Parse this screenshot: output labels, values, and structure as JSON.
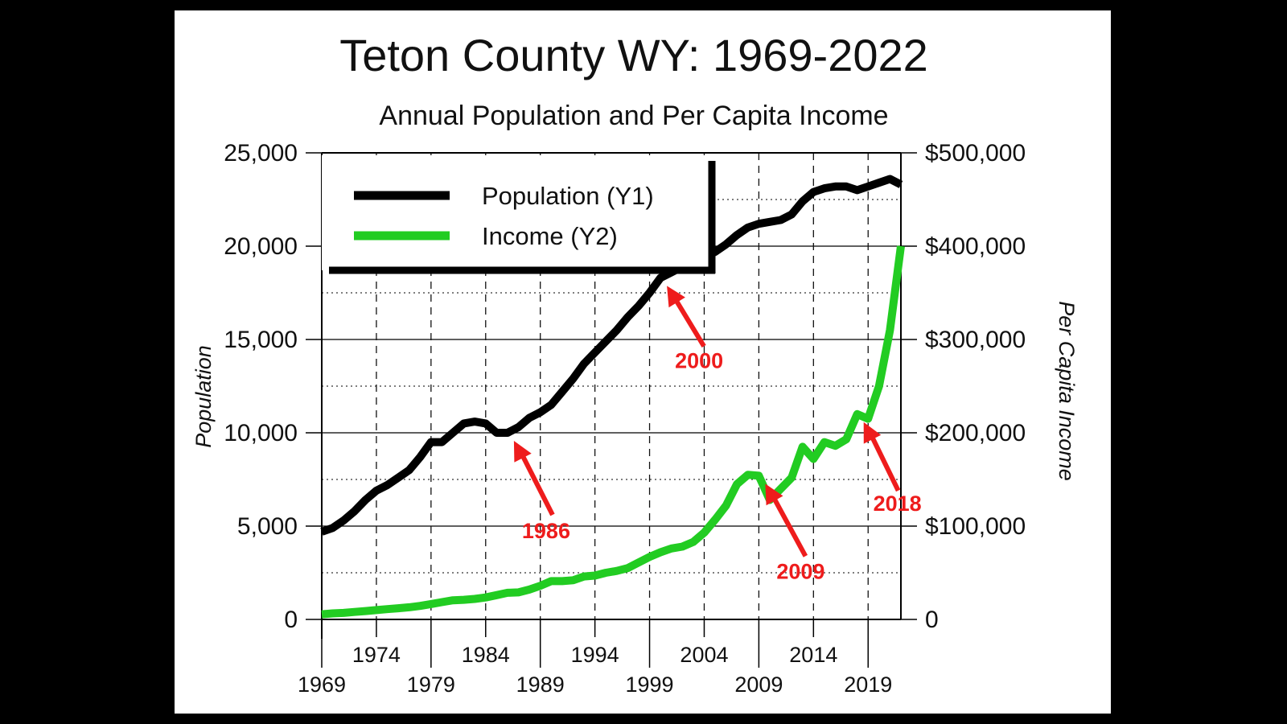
{
  "chart_data": {
    "type": "line",
    "title": "Teton County WY: 1969-2022",
    "subtitle": "Annual Population and Per Capita Income",
    "ylabel": "Population",
    "y2label": "Per Capita Income",
    "xlim": [
      1969,
      2022
    ],
    "ylim": [
      0,
      25000
    ],
    "y2lim": [
      0,
      500000
    ],
    "grid": true,
    "legend": "top-left",
    "x_ticks_lower": [
      "1969",
      "1979",
      "1989",
      "1999",
      "2009",
      "2019"
    ],
    "x_ticks_upper": [
      "1974",
      "1984",
      "1994",
      "2004",
      "2014"
    ],
    "y_ticks": [
      "0",
      "5,000",
      "10,000",
      "15,000",
      "20,000",
      "25,000"
    ],
    "y2_ticks": [
      "0",
      "$100,000",
      "$200,000",
      "$300,000",
      "$400,000",
      "$500,000"
    ],
    "x": [
      1969,
      1970,
      1971,
      1972,
      1973,
      1974,
      1975,
      1976,
      1977,
      1978,
      1979,
      1980,
      1981,
      1982,
      1983,
      1984,
      1985,
      1986,
      1987,
      1988,
      1989,
      1990,
      1991,
      1992,
      1993,
      1994,
      1995,
      1996,
      1997,
      1998,
      1999,
      2000,
      2001,
      2002,
      2003,
      2004,
      2005,
      2006,
      2007,
      2008,
      2009,
      2010,
      2011,
      2012,
      2013,
      2014,
      2015,
      2016,
      2017,
      2018,
      2019,
      2020,
      2021,
      2022
    ],
    "series": [
      {
        "name": "Population (Y1)",
        "axis": "y1",
        "color": "#000000",
        "values": [
          4700,
          4900,
          5300,
          5800,
          6400,
          6900,
          7200,
          7600,
          8000,
          8700,
          9500,
          9500,
          10000,
          10500,
          10600,
          10500,
          10000,
          10000,
          10300,
          10800,
          11100,
          11500,
          12200,
          12900,
          13700,
          14300,
          14900,
          15500,
          16200,
          16800,
          17500,
          18300,
          18600,
          18900,
          19200,
          19400,
          19700,
          20100,
          20600,
          21000,
          21200,
          21300,
          21400,
          21700,
          22400,
          22900,
          23100,
          23200,
          23200,
          23000,
          23200,
          23400,
          23600,
          23300
        ],
        "y2_values": null
      },
      {
        "name": "Income (Y2)",
        "axis": "y2",
        "color": "#00dd00",
        "values": [
          5500,
          6500,
          7000,
          8000,
          9000,
          10000,
          11000,
          12000,
          13000,
          14500,
          16500,
          18500,
          20500,
          21000,
          22000,
          23500,
          26000,
          28500,
          29000,
          32000,
          36000,
          41000,
          41000,
          42000,
          46000,
          47000,
          50000,
          52000,
          55000,
          61000,
          67000,
          72000,
          76000,
          78000,
          83000,
          93000,
          107000,
          122000,
          145000,
          155000,
          154000,
          128000,
          140000,
          152000,
          185000,
          172000,
          190000,
          186000,
          193000,
          220000,
          215000,
          250000,
          310000,
          400000
        ]
      }
    ],
    "annotations": [
      {
        "label": "1986",
        "x": 1986,
        "y": 10000
      },
      {
        "label": "2000",
        "x": 2000,
        "y": 18300
      },
      {
        "label": "2009",
        "x": 2009,
        "y": 6400
      },
      {
        "label": "2018",
        "x": 2018,
        "y": 11000
      }
    ]
  }
}
